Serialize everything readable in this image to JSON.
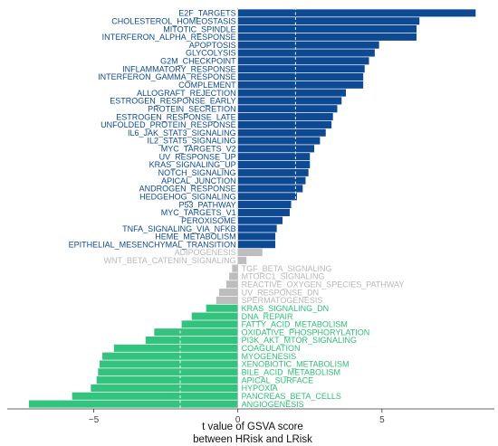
{
  "chart_data": {
    "type": "bar",
    "orientation": "horizontal",
    "xlabel": "t value of GSVA score\nbetween HRisk and LRisk",
    "ylabel": "",
    "xlim": [
      -8.0,
      8.9
    ],
    "xticks": [
      -5,
      0,
      5
    ],
    "reference_lines": [
      -2.0,
      0,
      2.0
    ],
    "grid": false,
    "colors": {
      "up": "#0e4a94",
      "up_label": "#0e4a94",
      "down": "#34c27f",
      "down_label": "#2fbf77",
      "nonsig": "#bdbdbd",
      "nonsig_label": "#b8b8b8"
    },
    "categories": [
      "E2F_TARGETS",
      "CHOLESTEROL_HOMEOSTASIS",
      "MITOTIC_SPINDLE",
      "INTERFERON_ALPHA_RESPONSE",
      "APOPTOSIS",
      "GLYCOLYSIS",
      "G2M_CHECKPOINT",
      "INFLAMMATORY_RESPONSE",
      "INTERFERON_GAMMA_RESPONSE",
      "COMPLEMENT",
      "ALLOGRAFT_REJECTION",
      "ESTROGEN_RESPONSE_EARLY",
      "PROTEIN_SECRETION",
      "ESTROGEN_RESPONSE_LATE",
      "UNFOLDED_PROTEIN_RESPONSE",
      "IL6_JAK_STAT3_SIGNALING",
      "IL2_STAT5_SIGNALING",
      "MYC_TARGETS_V2",
      "UV_RESPONSE_UP",
      "KRAS_SIGNALING_UP",
      "NOTCH_SIGNALING",
      "APICAL_JUNCTION",
      "ANDROGEN_RESPONSE",
      "HEDGEHOG_SIGNALING",
      "P53_PATHWAY",
      "MYC_TARGETS_V1",
      "PEROXISOME",
      "TNFA_SIGNALING_VIA_NFKB",
      "HEME_METABOLISM",
      "EPITHELIAL_MESENCHYMAL_TRANSITION",
      "ADIPOGENESIS",
      "WNT_BETA_CATENIN_SIGNALING",
      "TGF_BETA_SIGNALING",
      "MTORC1_SIGNALING",
      "REACTIVE_OXYGEN_SPECIES_PATHWAY",
      "UV_RESPONSE_DN",
      "SPERMATOGENESIS",
      "KRAS_SIGNALING_DN",
      "DNA_REPAIR",
      "FATTY_ACID_METABOLISM",
      "OXIDATIVE_PHOSPHORYLATION",
      "PI3K_AKT_MTOR_SIGNALING",
      "COAGULATION",
      "MYOGENESIS",
      "XENOBIOTIC_METABOLISM",
      "BILE_ACID_METABOLISM",
      "APICAL_SURFACE",
      "HYPOXIA",
      "PANCREAS_BETA_CELLS",
      "ANGIOGENESIS"
    ],
    "values": [
      8.25,
      6.3,
      6.2,
      6.2,
      4.9,
      4.75,
      4.55,
      4.4,
      4.35,
      4.35,
      3.75,
      3.6,
      3.45,
      3.3,
      3.25,
      3.05,
      2.85,
      2.65,
      2.5,
      2.5,
      2.45,
      2.35,
      2.25,
      2.05,
      1.85,
      1.8,
      1.55,
      1.35,
      1.3,
      1.3,
      0.85,
      0.3,
      -0.2,
      -0.3,
      -0.4,
      -0.65,
      -0.75,
      -1.1,
      -1.6,
      -1.95,
      -2.9,
      -3.2,
      -4.3,
      -4.7,
      -4.8,
      -4.85,
      -4.9,
      -5.1,
      -5.75,
      -7.25
    ],
    "groups": [
      "up",
      "up",
      "up",
      "up",
      "up",
      "up",
      "up",
      "up",
      "up",
      "up",
      "up",
      "up",
      "up",
      "up",
      "up",
      "up",
      "up",
      "up",
      "up",
      "up",
      "up",
      "up",
      "up",
      "up",
      "up",
      "up",
      "up",
      "up",
      "up",
      "up",
      "nonsig",
      "nonsig",
      "nonsig",
      "nonsig",
      "nonsig",
      "nonsig",
      "nonsig",
      "down",
      "down",
      "down",
      "down",
      "down",
      "down",
      "down",
      "down",
      "down",
      "down",
      "down",
      "down",
      "down"
    ]
  }
}
